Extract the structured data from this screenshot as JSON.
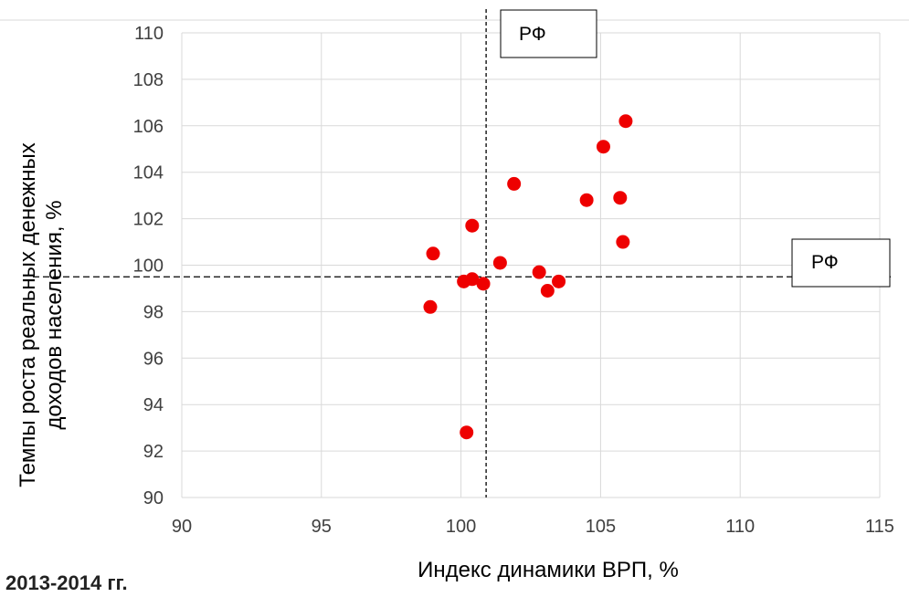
{
  "chart_data": {
    "type": "scatter",
    "xlabel": "Индекс динамики ВРП,  %",
    "ylabel_lines": [
      "Темпы роста реальных денежных",
      "доходов населения, %"
    ],
    "xlim": [
      90,
      115
    ],
    "ylim": [
      90,
      110
    ],
    "x_ticks": [
      "90",
      "95",
      "100",
      "105",
      "110",
      "115"
    ],
    "y_ticks": [
      "90",
      "92",
      "94",
      "96",
      "98",
      "100",
      "102",
      "104",
      "106",
      "108",
      "110"
    ],
    "grid": true,
    "marker_color": "#ee0000",
    "reference_lines": {
      "vertical": {
        "x": 100.9,
        "label": "РФ"
      },
      "horizontal": {
        "y": 99.5,
        "label": "РФ"
      }
    },
    "points": [
      {
        "x": 98.9,
        "y": 98.2
      },
      {
        "x": 99.0,
        "y": 100.5
      },
      {
        "x": 100.1,
        "y": 99.3
      },
      {
        "x": 100.4,
        "y": 99.4
      },
      {
        "x": 100.8,
        "y": 99.2
      },
      {
        "x": 100.4,
        "y": 101.7
      },
      {
        "x": 100.2,
        "y": 92.8
      },
      {
        "x": 101.4,
        "y": 100.1
      },
      {
        "x": 101.9,
        "y": 103.5
      },
      {
        "x": 102.8,
        "y": 99.7
      },
      {
        "x": 103.1,
        "y": 98.9
      },
      {
        "x": 103.5,
        "y": 99.3
      },
      {
        "x": 104.5,
        "y": 102.8
      },
      {
        "x": 105.1,
        "y": 105.1
      },
      {
        "x": 105.7,
        "y": 102.9
      },
      {
        "x": 105.8,
        "y": 101.0
      },
      {
        "x": 105.9,
        "y": 106.2
      }
    ]
  },
  "period_label": "2013-2014 гг."
}
